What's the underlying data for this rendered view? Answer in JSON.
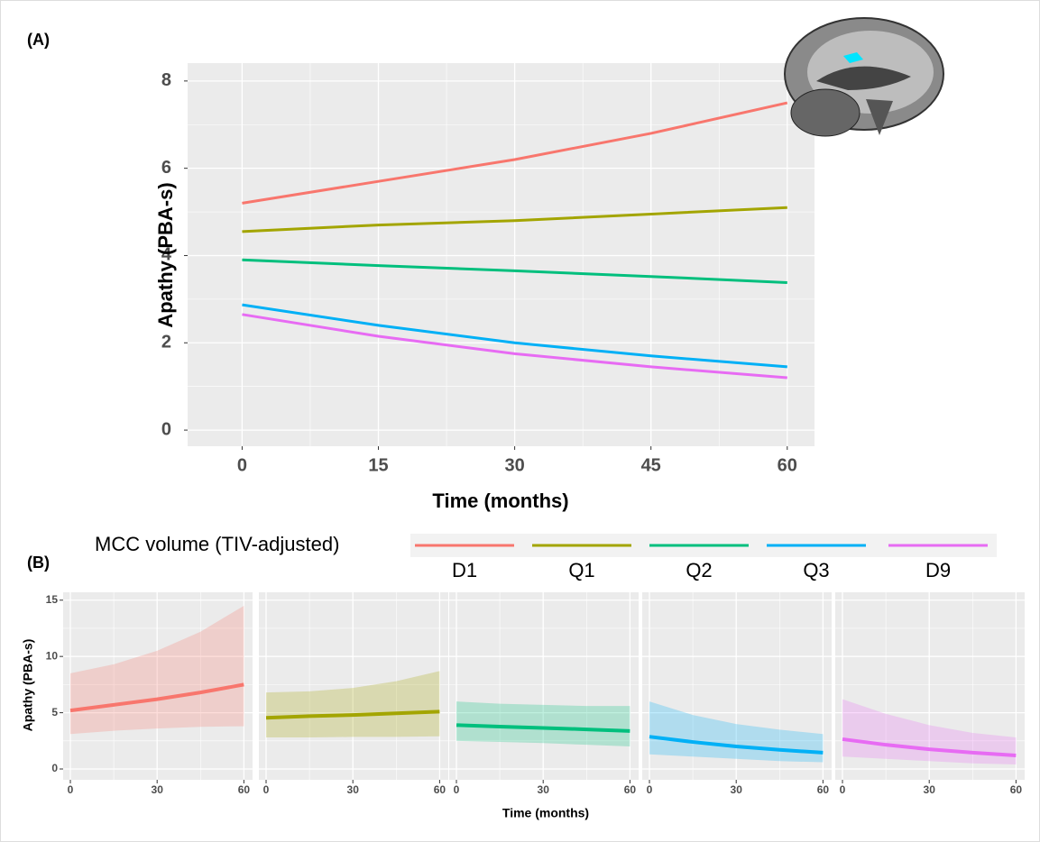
{
  "chart_data": [
    {
      "type": "line",
      "label": "(A)",
      "y_label": "Apathy (PBA-s)",
      "x_label": "Time (months)",
      "legend_title": "MCC volume (TIV-adjusted)",
      "x": [
        0,
        15,
        30,
        45,
        60
      ],
      "xlim": [
        -6,
        63
      ],
      "ylim": [
        -0.37,
        8.41
      ],
      "xticks": [
        0,
        15,
        30,
        45,
        60
      ],
      "yticks": [
        0,
        2,
        4,
        6,
        8
      ],
      "grid": true,
      "series": [
        {
          "name": "D1",
          "color": "#F8766D",
          "values": [
            5.2,
            5.7,
            6.2,
            6.8,
            7.5
          ]
        },
        {
          "name": "Q1",
          "color": "#A3A500",
          "values": [
            4.55,
            4.7,
            4.8,
            4.95,
            5.1
          ]
        },
        {
          "name": "Q2",
          "color": "#00BF7D",
          "values": [
            3.9,
            3.77,
            3.65,
            3.52,
            3.38
          ]
        },
        {
          "name": "Q3",
          "color": "#00B0F6",
          "values": [
            2.87,
            2.4,
            2.0,
            1.7,
            1.45
          ]
        },
        {
          "name": "D9",
          "color": "#E76BF3",
          "values": [
            2.65,
            2.15,
            1.75,
            1.45,
            1.2
          ]
        }
      ]
    },
    {
      "type": "ribbon",
      "label": "(B)",
      "y_label": "Apathy (PBA-s)",
      "x_label": "Time (months)",
      "x": [
        0,
        15,
        30,
        45,
        60
      ],
      "xlim": [
        -2.5,
        63
      ],
      "ylim": [
        -0.96,
        15.7
      ],
      "xticks": [
        0,
        30,
        60
      ],
      "yticks": [
        0,
        5,
        10,
        15
      ],
      "grid": true,
      "series": [
        {
          "color": "#F8766D",
          "values": [
            5.2,
            5.7,
            6.2,
            6.8,
            7.5
          ],
          "lower": [
            3.1,
            3.4,
            3.6,
            3.75,
            3.8
          ],
          "upper": [
            8.5,
            9.3,
            10.5,
            12.2,
            14.5
          ]
        },
        {
          "color": "#A3A500",
          "values": [
            4.55,
            4.7,
            4.8,
            4.95,
            5.1
          ],
          "lower": [
            2.8,
            2.8,
            2.85,
            2.85,
            2.9
          ],
          "upper": [
            6.8,
            6.9,
            7.2,
            7.8,
            8.7
          ]
        },
        {
          "color": "#00BF7D",
          "values": [
            3.9,
            3.77,
            3.65,
            3.52,
            3.38
          ],
          "lower": [
            2.5,
            2.4,
            2.3,
            2.15,
            2.0
          ],
          "upper": [
            6.0,
            5.8,
            5.7,
            5.6,
            5.6
          ]
        },
        {
          "color": "#00B0F6",
          "values": [
            2.87,
            2.4,
            2.0,
            1.7,
            1.45
          ],
          "lower": [
            1.3,
            1.1,
            0.9,
            0.7,
            0.6
          ],
          "upper": [
            6.0,
            4.8,
            4.0,
            3.5,
            3.1
          ]
        },
        {
          "color": "#E76BF3",
          "values": [
            2.65,
            2.15,
            1.75,
            1.45,
            1.2
          ],
          "lower": [
            1.1,
            0.9,
            0.7,
            0.5,
            0.4
          ],
          "upper": [
            6.2,
            4.9,
            3.9,
            3.2,
            2.8
          ]
        }
      ]
    }
  ]
}
